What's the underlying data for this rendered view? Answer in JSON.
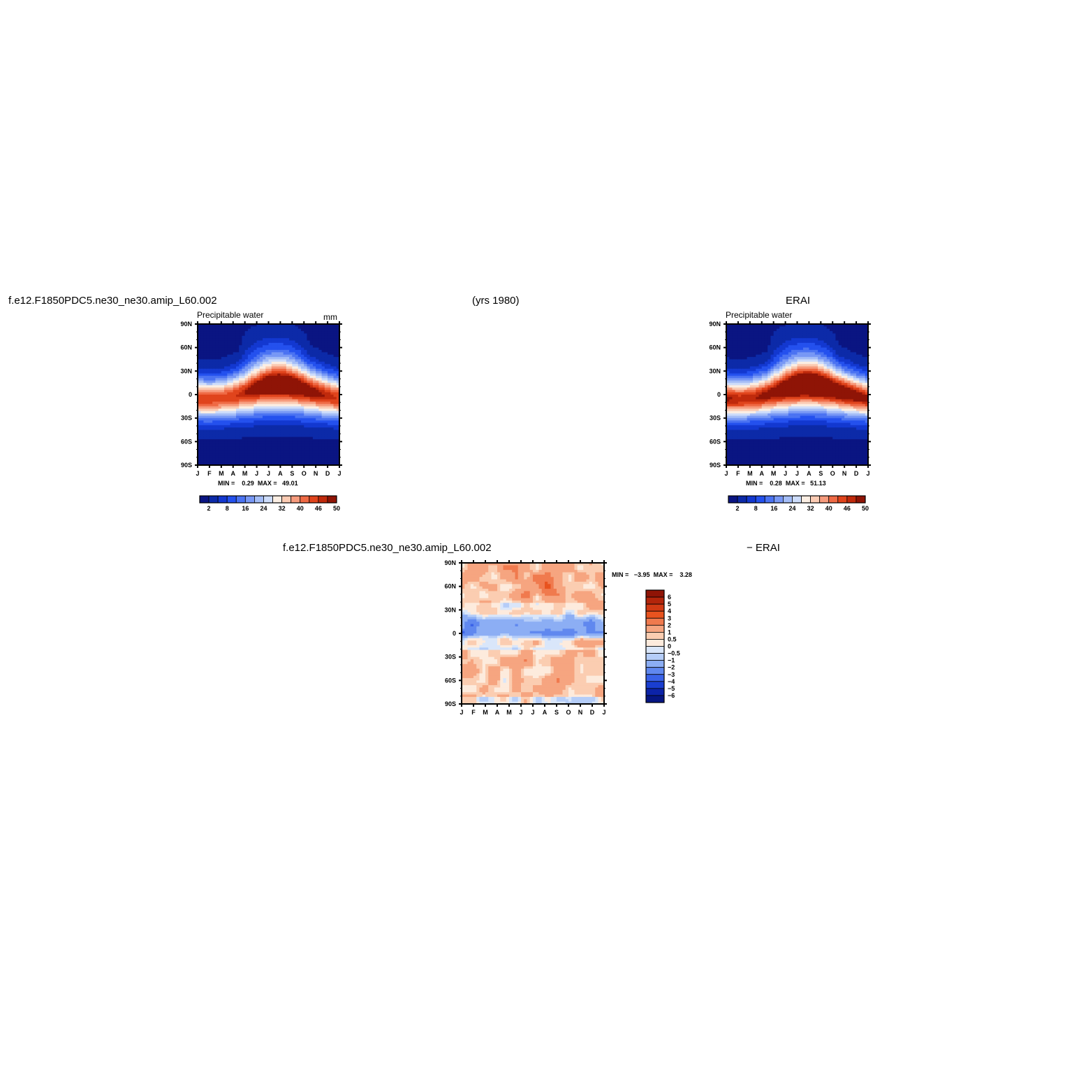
{
  "header": {
    "case_name": "f.e12.F1850PDC5.ne30_ne30.amip_L60.002",
    "years": "(yrs 1980)",
    "obs_name": "ERAI"
  },
  "chart_data": [
    {
      "type": "heatmap",
      "title": "f.e12.F1850PDC5.ne30_ne30.amip_L60.002",
      "subtitle": "Precipitable water",
      "units": "mm",
      "x_ticks": [
        "J",
        "F",
        "M",
        "A",
        "M",
        "J",
        "J",
        "A",
        "S",
        "O",
        "N",
        "D",
        "J"
      ],
      "y_ticks": [
        "90N",
        "60N",
        "30N",
        "0",
        "30S",
        "60S",
        "90S"
      ],
      "min_label": "MIN =",
      "min": "0.29",
      "max_label": "MAX =",
      "max": "49.01",
      "colorbar_labels": [
        "2",
        "8",
        "16",
        "24",
        "32",
        "40",
        "46",
        "50"
      ],
      "colors": [
        "#0a1582",
        "#0c2aa8",
        "#1338d0",
        "#2451ee",
        "#4b73f2",
        "#7898f5",
        "#a4bdf7",
        "#cddcfa",
        "#fbeee3",
        "#fbcbb3",
        "#f69b7d",
        "#ef6a45",
        "#e0441c",
        "#c02a0c",
        "#8f1406"
      ]
    },
    {
      "type": "heatmap",
      "title": "ERAI",
      "subtitle": "Precipitable water",
      "x_ticks": [
        "J",
        "F",
        "M",
        "A",
        "M",
        "J",
        "J",
        "A",
        "S",
        "O",
        "N",
        "D",
        "J"
      ],
      "y_ticks": [
        "90N",
        "60N",
        "30N",
        "0",
        "30S",
        "60S",
        "90S"
      ],
      "min_label": "MIN =",
      "min": "0.28",
      "max_label": "MAX =",
      "max": "51.13",
      "colorbar_labels": [
        "2",
        "8",
        "16",
        "24",
        "32",
        "40",
        "46",
        "50"
      ]
    },
    {
      "type": "heatmap",
      "title_left": "f.e12.F1850PDC5.ne30_ne30.amip_L60.002",
      "title_right": "− ERAI",
      "x_ticks": [
        "J",
        "F",
        "M",
        "A",
        "M",
        "J",
        "J",
        "A",
        "S",
        "O",
        "N",
        "D",
        "J"
      ],
      "y_ticks": [
        "90N",
        "60N",
        "30N",
        "0",
        "30S",
        "60S",
        "90S"
      ],
      "min_label": "MIN =",
      "min": "−3.95",
      "max_label": "MAX =",
      "max": "3.28",
      "colorbar_labels": [
        "6",
        "5",
        "4",
        "3",
        "2",
        "1",
        "0.5",
        "0",
        "−0.5",
        "−1",
        "−2",
        "−3",
        "−4",
        "−5",
        "−6"
      ],
      "colors": [
        "#8f1406",
        "#b3250b",
        "#d13a14",
        "#e8531f",
        "#f07a4e",
        "#f6a580",
        "#fbcdb1",
        "#fdebdd",
        "#d9e6fa",
        "#b5cdf8",
        "#8caef4",
        "#6088ef",
        "#3a62e8",
        "#1a3ed0",
        "#0c23a8",
        "#061682"
      ]
    }
  ]
}
